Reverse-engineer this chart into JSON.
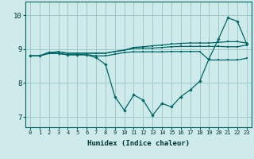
{
  "xlabel": "Humidex (Indice chaleur)",
  "background_color": "#ceeaea",
  "grid_color": "#a0c8c8",
  "line_color": "#006666",
  "ylim": [
    6.7,
    10.4
  ],
  "xlim": [
    -0.5,
    23.5
  ],
  "yticks": [
    7,
    8,
    9,
    10
  ],
  "xticks": [
    0,
    1,
    2,
    3,
    4,
    5,
    6,
    7,
    8,
    9,
    10,
    11,
    12,
    13,
    14,
    15,
    16,
    17,
    18,
    19,
    20,
    21,
    22,
    23
  ],
  "series": [
    [
      8.8,
      8.8,
      8.9,
      8.87,
      8.83,
      8.83,
      8.83,
      8.75,
      8.55,
      7.6,
      7.2,
      7.65,
      7.5,
      7.05,
      7.4,
      7.3,
      7.6,
      7.8,
      8.05,
      8.72,
      9.3,
      9.92,
      9.82,
      9.15
    ],
    [
      8.8,
      8.8,
      8.9,
      8.92,
      8.88,
      8.88,
      8.88,
      8.88,
      8.88,
      8.93,
      8.97,
      9.02,
      9.03,
      9.03,
      9.05,
      9.07,
      9.08,
      9.08,
      9.08,
      9.08,
      9.08,
      9.07,
      9.07,
      9.12
    ],
    [
      8.8,
      8.8,
      8.9,
      8.92,
      8.88,
      8.88,
      8.88,
      8.88,
      8.88,
      8.93,
      8.97,
      9.05,
      9.07,
      9.1,
      9.12,
      9.15,
      9.17,
      9.18,
      9.18,
      9.18,
      9.2,
      9.22,
      9.22,
      9.18
    ],
    [
      8.8,
      8.8,
      8.87,
      8.87,
      8.84,
      8.84,
      8.84,
      8.8,
      8.8,
      8.85,
      8.9,
      8.92,
      8.92,
      8.92,
      8.92,
      8.93,
      8.93,
      8.93,
      8.93,
      8.68,
      8.68,
      8.68,
      8.68,
      8.73
    ]
  ]
}
